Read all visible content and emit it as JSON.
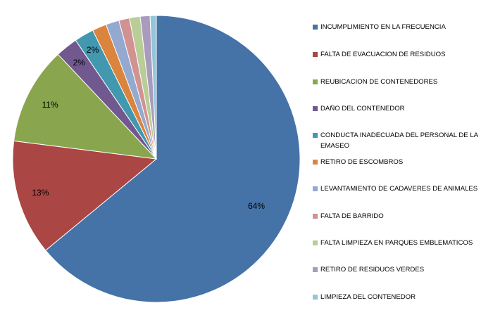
{
  "chart_data": {
    "type": "pie",
    "title": "",
    "legend_position": "right",
    "start_angle_deg": 0,
    "direction": "clockwise",
    "slices": [
      {
        "label": "INCUMPLIMIENTO EN LA FRECUENCIA",
        "value": 64.0,
        "display": "64%",
        "color": "#4572A7"
      },
      {
        "label": "FALTA DE EVACUACION DE RESIDUOS",
        "value": 13.0,
        "display": "13%",
        "color": "#AA4643"
      },
      {
        "label": "REUBICACION DE CONTENEDORES",
        "value": 11.0,
        "display": "11%",
        "color": "#89A54E"
      },
      {
        "label": "DAÑO DEL CONTENEDOR",
        "value": 2.5,
        "display": "2%",
        "color": "#71588F"
      },
      {
        "label": "CONDUCTA INADECUADA DEL PERSONAL DE LA EMASEO",
        "value": 2.2,
        "display": "2%",
        "color": "#4198AF"
      },
      {
        "label": "RETIRO DE ESCOMBROS",
        "value": 1.6,
        "display": "",
        "color": "#DB843D"
      },
      {
        "label": "LEVANTAMIENTO DE CADAVERES DE ANIMALES",
        "value": 1.5,
        "display": "",
        "color": "#93A9CF"
      },
      {
        "label": "FALTA DE BARRIDO",
        "value": 1.2,
        "display": "",
        "color": "#D19392"
      },
      {
        "label": "FALTA LIMPIEZA EN PARQUES EMBLEMATICOS",
        "value": 1.2,
        "display": "",
        "color": "#B9CD96"
      },
      {
        "label": "RETIRO DE RESIDUOS VERDES",
        "value": 1.1,
        "display": "",
        "color": "#A99BBD"
      },
      {
        "label": "LIMPIEZA DEL CONTENEDOR",
        "value": 0.7,
        "display": "",
        "color": "#92C5D7"
      }
    ]
  }
}
